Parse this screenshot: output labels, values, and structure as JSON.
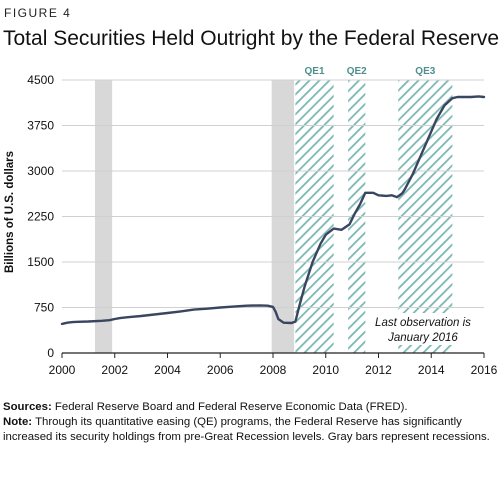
{
  "figure_label": "FIGURE 4",
  "title": "Total Securities Held Outright by the Federal Reserve",
  "notes": {
    "sources_label": "Sources:",
    "sources_text": " Federal Reserve Board and Federal Reserve Economic Data (FRED).",
    "note_label": "Note:",
    "note_text": " Through its quantitative easing (QE) programs, the Federal Reserve has significantly increased its security holdings from pre-Great Recession levels. Gray bars represent recessions."
  },
  "chart_data": {
    "type": "line",
    "title": "Total Securities Held Outright by the Federal Reserve",
    "xlabel": "",
    "ylabel": "Billions of U.S. dollars",
    "xlim": [
      2000,
      2016
    ],
    "ylim": [
      0,
      4500
    ],
    "xticks": [
      2000,
      2002,
      2004,
      2006,
      2008,
      2010,
      2012,
      2014,
      2016
    ],
    "yticks": [
      0,
      750,
      1500,
      2250,
      3000,
      3750,
      4500
    ],
    "grid": "horizontal",
    "colors": {
      "line": "#3a4560",
      "recession": "#d8d8d8",
      "qe_hatch": "#7ab8b4",
      "qe_label": "#4f8f8c",
      "grid": "#d0d0d0"
    },
    "recessions": [
      {
        "start": 2001.25,
        "end": 2001.9
      },
      {
        "start": 2007.95,
        "end": 2008.8
      }
    ],
    "qe_programs": [
      {
        "label": "QE1",
        "start": 2008.85,
        "end": 2010.3
      },
      {
        "label": "QE2",
        "start": 2010.85,
        "end": 2011.5
      },
      {
        "label": "QE3",
        "start": 2012.75,
        "end": 2014.8
      }
    ],
    "annotation": "Last observation is January 2016",
    "series": [
      {
        "x": [
          2000.0,
          2000.2,
          2000.4,
          2000.6,
          2001.0,
          2001.5,
          2001.8,
          2002.0,
          2002.2,
          2002.5,
          2003.0,
          2003.5,
          2004.0,
          2004.5,
          2005.0,
          2005.5,
          2006.0,
          2006.5,
          2007.0,
          2007.5,
          2007.8,
          2008.0,
          2008.1,
          2008.2,
          2008.4,
          2008.7,
          2008.85,
          2009.0,
          2009.2,
          2009.5,
          2009.8,
          2010.0,
          2010.3,
          2010.6,
          2010.9,
          2011.1,
          2011.3,
          2011.5,
          2011.8,
          2012.0,
          2012.3,
          2012.5,
          2012.7,
          2012.9,
          2013.0,
          2013.3,
          2013.6,
          2013.9,
          2014.2,
          2014.5,
          2014.8,
          2015.0,
          2015.5,
          2015.8,
          2016.0
        ],
        "values": [
          480,
          500,
          510,
          515,
          520,
          530,
          540,
          560,
          575,
          590,
          610,
          635,
          660,
          685,
          715,
          730,
          750,
          765,
          780,
          785,
          780,
          760,
          680,
          560,
          500,
          495,
          520,
          780,
          1100,
          1500,
          1800,
          1950,
          2050,
          2030,
          2120,
          2300,
          2450,
          2640,
          2640,
          2600,
          2590,
          2600,
          2570,
          2630,
          2700,
          2950,
          3250,
          3550,
          3850,
          4080,
          4200,
          4220,
          4220,
          4230,
          4220
        ]
      }
    ]
  }
}
